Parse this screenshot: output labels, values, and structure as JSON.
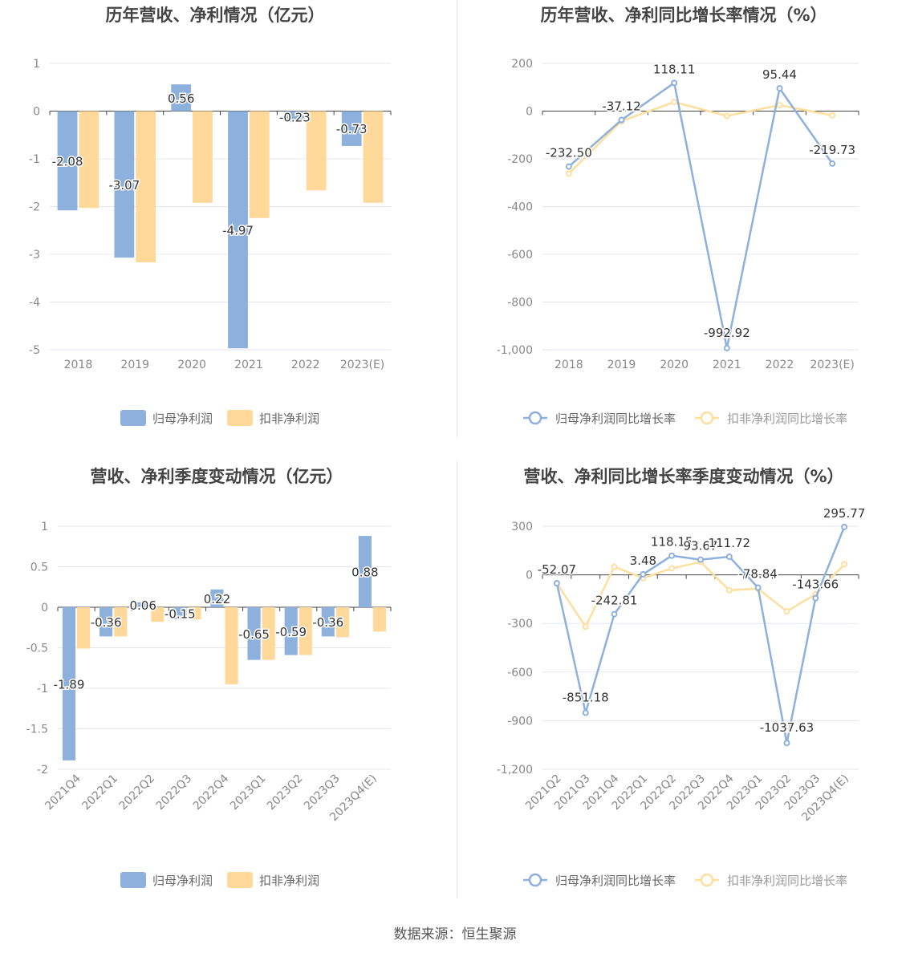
{
  "colors": {
    "blue": "#8eb0dc",
    "orange": "#ffd89a",
    "blue_line": "#8eb0dc",
    "orange_line": "#ffdf9e",
    "grid": "#e4e7ef",
    "axis": "#444444",
    "tick_text": "#888888",
    "title": "#444444",
    "label": "#333333"
  },
  "source": "数据来源：恒生聚源",
  "chart_data": [
    {
      "type": "bar",
      "title": "历年营收、净利情况（亿元）",
      "categories": [
        "2018",
        "2019",
        "2020",
        "2021",
        "2022",
        "2023(E)"
      ],
      "ylim": [
        -5,
        1
      ],
      "yticks": [
        1,
        0,
        -1,
        -2,
        -3,
        -4,
        -5
      ],
      "series": [
        {
          "name": "归母净利润",
          "values": [
            -2.08,
            -3.07,
            0.56,
            -4.97,
            -0.23,
            -0.73
          ],
          "labels": [
            "-2.08",
            "-3.07",
            "0.56",
            "-4.97",
            "-0.23",
            "-0.73"
          ]
        },
        {
          "name": "扣非净利润",
          "values": [
            -2.03,
            -3.17,
            -1.92,
            -2.24,
            -1.66,
            -1.92
          ]
        }
      ]
    },
    {
      "type": "line",
      "title": "历年营收、净利同比增长率情况（%）",
      "categories": [
        "2018",
        "2019",
        "2020",
        "2021",
        "2022",
        "2023(E)"
      ],
      "ylim": [
        -1000,
        200
      ],
      "yticks": [
        200,
        0,
        -200,
        -400,
        -600,
        -800,
        -1000
      ],
      "ytick_labels": [
        "200",
        "0",
        "-200",
        "-400",
        "-600",
        "-800",
        "-1,000"
      ],
      "series": [
        {
          "name": "归母净利润同比增长率",
          "values": [
            -232.5,
            -37.12,
            118.11,
            -992.92,
            95.44,
            -219.73
          ],
          "labels": [
            "-232.50",
            "-37.12",
            "118.11",
            "-992.92",
            "95.44",
            "-219.73"
          ]
        },
        {
          "name": "扣非净利润同比增长率",
          "values": [
            -262,
            -42,
            38,
            -20,
            25,
            -18
          ]
        }
      ]
    },
    {
      "type": "bar",
      "title": "营收、净利季度变动情况（亿元）",
      "categories": [
        "2021Q4",
        "2022Q1",
        "2022Q2",
        "2022Q3",
        "2022Q4",
        "2023Q1",
        "2023Q2",
        "2023Q3",
        "2023Q4(E)"
      ],
      "ylim": [
        -2,
        1
      ],
      "yticks": [
        1,
        0.5,
        0,
        -0.5,
        -1,
        -1.5,
        -2
      ],
      "ytick_labels": [
        "1",
        "0.5",
        "0",
        "-0.5",
        "-1",
        "-1.5",
        "-2"
      ],
      "series": [
        {
          "name": "归母净利润",
          "values": [
            -1.89,
            -0.36,
            0.06,
            -0.15,
            0.22,
            -0.65,
            -0.59,
            -0.36,
            0.88
          ],
          "labels": [
            "-1.89",
            "-0.36",
            "0.06",
            "-0.15",
            "0.22",
            "-0.65",
            "-0.59",
            "-0.36",
            "0.88"
          ]
        },
        {
          "name": "扣非净利润",
          "values": [
            -0.51,
            -0.36,
            -0.18,
            -0.15,
            -0.95,
            -0.65,
            -0.59,
            -0.37,
            -0.3
          ]
        }
      ]
    },
    {
      "type": "line",
      "title": "营收、净利同比增长率季度变动情况（%）",
      "categories": [
        "2021Q2",
        "2021Q3",
        "2021Q4",
        "2022Q1",
        "2022Q2",
        "2022Q3",
        "2022Q4",
        "2023Q1",
        "2023Q2",
        "2023Q3",
        "2023Q4(E)"
      ],
      "ylim": [
        -1200,
        300
      ],
      "yticks": [
        300,
        0,
        -300,
        -600,
        -900,
        -1200
      ],
      "ytick_labels": [
        "300",
        "0",
        "-300",
        "-600",
        "-900",
        "-1,200"
      ],
      "series": [
        {
          "name": "归母净利润同比增长率",
          "values": [
            -52.07,
            -851.18,
            -242.81,
            3.48,
            118.15,
            93.67,
            111.72,
            -78.84,
            -1037.63,
            -143.66,
            295.77
          ],
          "labels": [
            "-52.07",
            "-851.18",
            "-242.81",
            "3.48",
            "118.15",
            "93.67",
            "111.72",
            "-78.84",
            "-1037.63",
            "-143.66",
            "295.77"
          ]
        },
        {
          "name": "扣非净利润同比增长率",
          "values": [
            -52,
            -320,
            50,
            -20,
            40,
            80,
            -95,
            -85,
            -225,
            -120,
            65
          ]
        }
      ]
    }
  ]
}
